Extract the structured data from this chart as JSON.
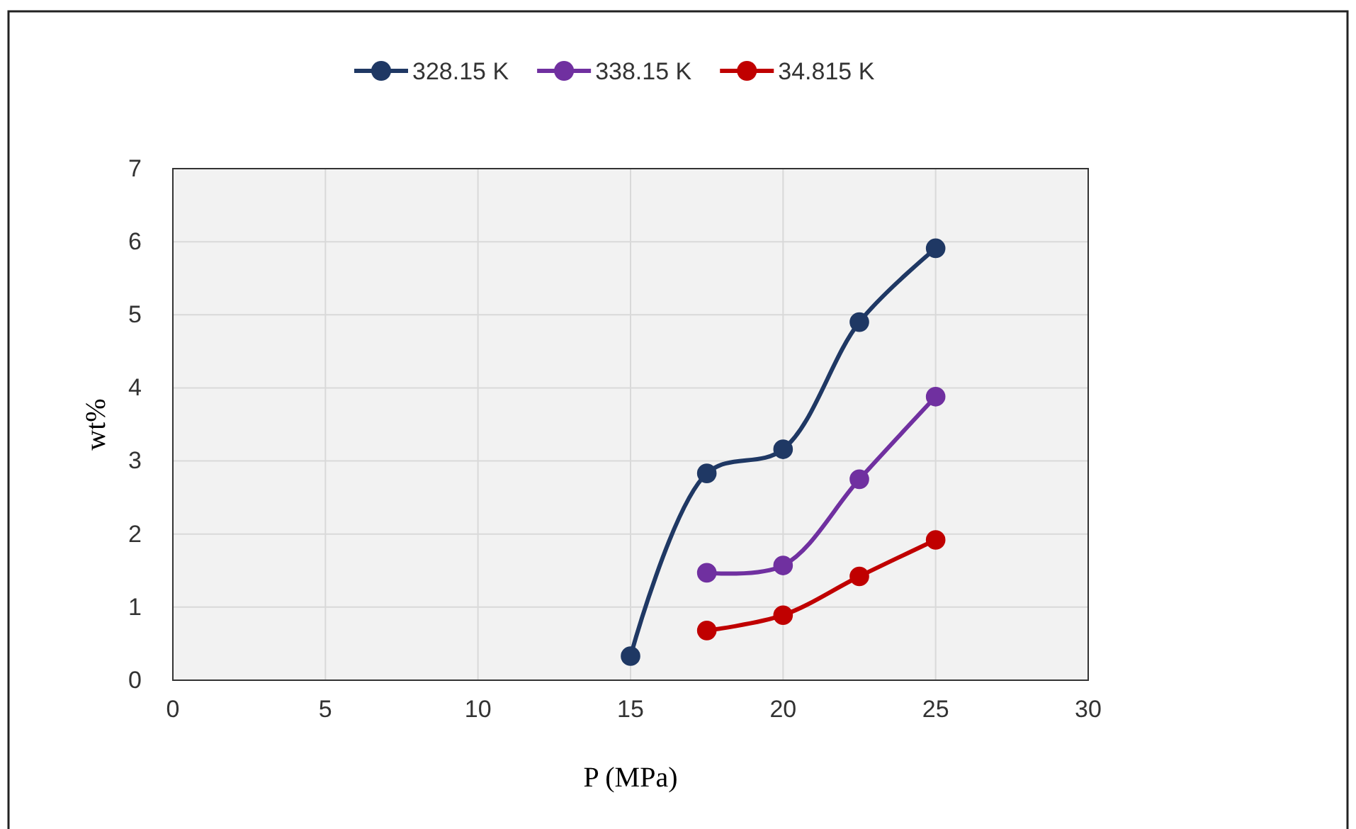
{
  "chart_data": {
    "type": "line",
    "xlabel": "P (MPa)",
    "ylabel": "wt%",
    "xlim": [
      0,
      30
    ],
    "xticks": [
      0,
      5,
      10,
      15,
      20,
      25,
      30
    ],
    "ylim": [
      0,
      7
    ],
    "yticks": [
      0,
      1,
      2,
      3,
      4,
      5,
      6,
      7
    ],
    "grid": true,
    "legend": "top",
    "marker": "circle",
    "line_style": "solid",
    "series": [
      {
        "name": "328.15 K",
        "color": "#1f3864",
        "x": [
          15,
          17.5,
          20,
          22.5,
          25
        ],
        "values": [
          0.33,
          2.83,
          3.16,
          4.9,
          5.91
        ]
      },
      {
        "name": "338.15 K",
        "color": "#7030a0",
        "x": [
          17.5,
          20,
          22.5,
          25
        ],
        "values": [
          1.47,
          1.57,
          2.75,
          3.88
        ]
      },
      {
        "name": "34.815 K",
        "color": "#c00000",
        "x": [
          17.5,
          20,
          22.5,
          25
        ],
        "values": [
          0.68,
          0.89,
          1.42,
          1.92
        ]
      }
    ]
  }
}
